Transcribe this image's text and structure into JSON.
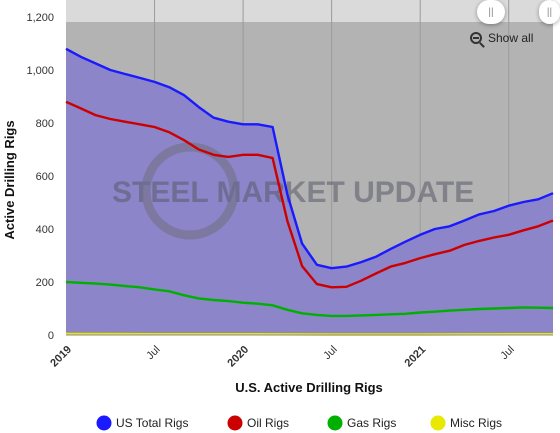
{
  "chart_data": {
    "type": "area",
    "title": "",
    "xlabel": "U.S. Active Drilling Rigs",
    "ylabel": "Active Drilling Rigs",
    "ylim": [
      0,
      1200
    ],
    "y_ticks": [
      "0",
      "200",
      "400",
      "600",
      "800",
      "1,000",
      "1,200"
    ],
    "x_tick_labels": [
      "2019",
      "Jul",
      "2020",
      "Jul",
      "2021",
      "Jul"
    ],
    "x_range": [
      "2019-01",
      "2021-10"
    ],
    "grid": "vertical",
    "legend_position": "bottom",
    "watermark": "STEEL MARKET UPDATE",
    "show_all_label": "Show all",
    "series": [
      {
        "name": "US Total Rigs",
        "color": "#1a1aff",
        "fill": "#8c85c9",
        "x": [
          "2019-01",
          "2019-02",
          "2019-03",
          "2019-04",
          "2019-05",
          "2019-06",
          "2019-07",
          "2019-08",
          "2019-09",
          "2019-10",
          "2019-11",
          "2019-12",
          "2020-01",
          "2020-02",
          "2020-03",
          "2020-04",
          "2020-05",
          "2020-06",
          "2020-07",
          "2020-08",
          "2020-09",
          "2020-10",
          "2020-11",
          "2020-12",
          "2021-01",
          "2021-02",
          "2021-03",
          "2021-04",
          "2021-05",
          "2021-06",
          "2021-07",
          "2021-08",
          "2021-09",
          "2021-10"
        ],
        "values": [
          1080,
          1050,
          1025,
          1000,
          985,
          970,
          955,
          935,
          905,
          860,
          820,
          805,
          795,
          795,
          785,
          530,
          345,
          265,
          252,
          258,
          275,
          295,
          325,
          352,
          378,
          400,
          410,
          432,
          455,
          468,
          488,
          502,
          512,
          535
        ]
      },
      {
        "name": "Oil Rigs",
        "color": "#cc0000",
        "x": [
          "2019-01",
          "2019-02",
          "2019-03",
          "2019-04",
          "2019-05",
          "2019-06",
          "2019-07",
          "2019-08",
          "2019-09",
          "2019-10",
          "2019-11",
          "2019-12",
          "2020-01",
          "2020-02",
          "2020-03",
          "2020-04",
          "2020-05",
          "2020-06",
          "2020-07",
          "2020-08",
          "2020-09",
          "2020-10",
          "2020-11",
          "2020-12",
          "2021-01",
          "2021-02",
          "2021-03",
          "2021-04",
          "2021-05",
          "2021-06",
          "2021-07",
          "2021-08",
          "2021-09",
          "2021-10"
        ],
        "values": [
          880,
          855,
          830,
          815,
          805,
          795,
          785,
          765,
          735,
          700,
          680,
          672,
          680,
          680,
          668,
          430,
          260,
          192,
          180,
          182,
          205,
          232,
          258,
          272,
          290,
          305,
          318,
          340,
          355,
          368,
          378,
          395,
          410,
          432
        ]
      },
      {
        "name": "Gas Rigs",
        "color": "#00b000",
        "x": [
          "2019-01",
          "2019-02",
          "2019-03",
          "2019-04",
          "2019-05",
          "2019-06",
          "2019-07",
          "2019-08",
          "2019-09",
          "2019-10",
          "2019-11",
          "2019-12",
          "2020-01",
          "2020-02",
          "2020-03",
          "2020-04",
          "2020-05",
          "2020-06",
          "2020-07",
          "2020-08",
          "2020-09",
          "2020-10",
          "2020-11",
          "2020-12",
          "2021-01",
          "2021-02",
          "2021-03",
          "2021-04",
          "2021-05",
          "2021-06",
          "2021-07",
          "2021-08",
          "2021-09",
          "2021-10"
        ],
        "values": [
          200,
          197,
          194,
          190,
          185,
          180,
          172,
          165,
          150,
          138,
          132,
          128,
          122,
          118,
          112,
          95,
          82,
          76,
          72,
          72,
          74,
          76,
          78,
          80,
          85,
          88,
          92,
          95,
          98,
          100,
          102,
          104,
          103,
          102
        ]
      },
      {
        "name": "Misc Rigs",
        "color": "#e8e800",
        "x": [
          "2019-01",
          "2019-07",
          "2020-01",
          "2020-07",
          "2021-01",
          "2021-07",
          "2021-10"
        ],
        "values": [
          4,
          3,
          3,
          2,
          2,
          3,
          3
        ]
      }
    ]
  }
}
